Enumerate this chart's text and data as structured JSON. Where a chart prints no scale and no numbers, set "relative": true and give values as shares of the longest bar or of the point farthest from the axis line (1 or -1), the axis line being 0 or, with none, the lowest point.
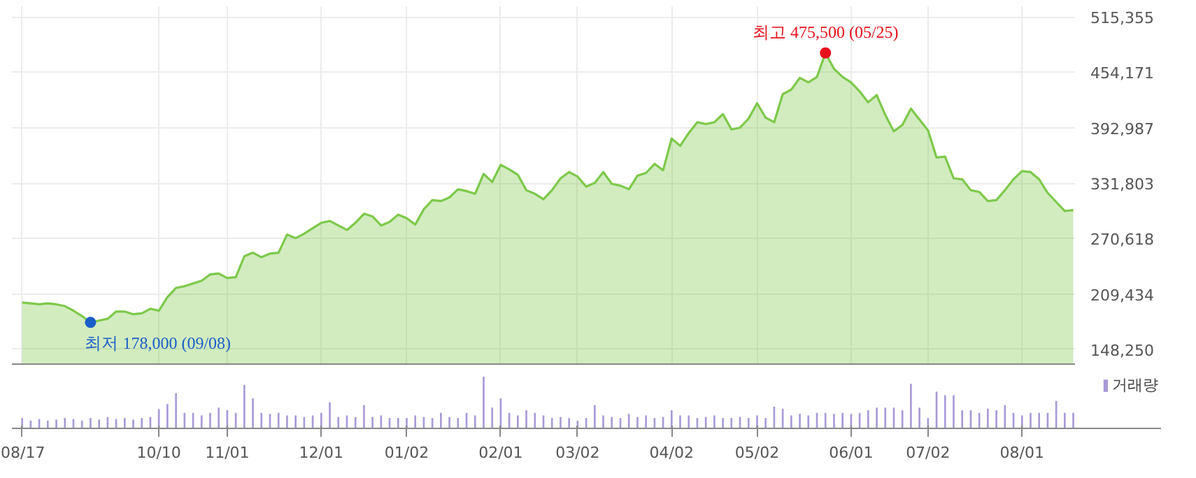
{
  "chart_data": [
    {
      "type": "area",
      "grid": true,
      "tick_labels": "y",
      "ylim": [
        132000,
        527000
      ],
      "yticks": [
        {
          "value": 148250,
          "label": "148,250"
        },
        {
          "value": 209434,
          "label": "209,434"
        },
        {
          "value": 270618,
          "label": "270,618"
        },
        {
          "value": 331803,
          "label": "331,803"
        },
        {
          "value": 392987,
          "label": "392,987"
        },
        {
          "value": 454171,
          "label": "454,171"
        },
        {
          "value": 515355,
          "label": "515,355"
        }
      ],
      "series": [
        {
          "type": "area",
          "color": "#7dc94a",
          "values": [
            200000,
            199000,
            198000,
            199000,
            198000,
            196000,
            191000,
            185000,
            178000,
            180000,
            182000,
            190000,
            190000,
            187000,
            188000,
            193000,
            191000,
            206000,
            216000,
            218000,
            221000,
            224000,
            231000,
            232000,
            227000,
            228000,
            251000,
            255000,
            250000,
            254000,
            255000,
            275000,
            271000,
            276000,
            282000,
            288000,
            290000,
            285000,
            280000,
            288000,
            298000,
            295000,
            285000,
            289000,
            297000,
            293000,
            286000,
            303000,
            313000,
            312000,
            316000,
            325000,
            323000,
            320000,
            342000,
            333000,
            352000,
            347000,
            341000,
            324000,
            320000,
            314000,
            324000,
            337000,
            344000,
            339000,
            328000,
            332000,
            344000,
            331000,
            329000,
            325000,
            340000,
            343000,
            353000,
            346000,
            381000,
            373000,
            387000,
            399000,
            397000,
            399000,
            408000,
            391000,
            393000,
            403000,
            420000,
            404000,
            399000,
            430000,
            435000,
            448000,
            443000,
            449000,
            475500,
            458000,
            449000,
            443000,
            433000,
            421000,
            429000,
            407000,
            389000,
            396000,
            414000,
            402000,
            390000,
            360000,
            361000,
            337000,
            336000,
            324000,
            322000,
            312000,
            313000,
            324000,
            336000,
            345000,
            344000,
            336000,
            321000,
            311000,
            301000,
            302000
          ]
        },
        {
          "type": "scatter",
          "values": [
            null,
            null,
            null,
            null,
            null,
            null,
            null,
            null,
            178000,
            null,
            null,
            null,
            null,
            null,
            null,
            null,
            null,
            null,
            null,
            null,
            null,
            null,
            null,
            null,
            null,
            null,
            null,
            null,
            null,
            null,
            null,
            null,
            null,
            null,
            null,
            null,
            null,
            null,
            null,
            null,
            null,
            null,
            null,
            null,
            null,
            null,
            null,
            null,
            null,
            null,
            null,
            null,
            null,
            null,
            null,
            null,
            null,
            null,
            null,
            null,
            null,
            null,
            null,
            null,
            null,
            null,
            null,
            null,
            null,
            null,
            null,
            null,
            null,
            null,
            null,
            null,
            null,
            null,
            null,
            null,
            null,
            null,
            null,
            null,
            null,
            null,
            null,
            null,
            null,
            null,
            null,
            null,
            null,
            null,
            475500,
            null,
            null,
            null,
            null,
            null,
            null,
            null,
            null,
            null,
            null,
            null,
            null,
            null,
            null,
            null,
            null,
            null,
            null,
            null,
            null,
            null,
            null,
            null,
            null,
            null,
            null,
            null,
            null,
            null
          ],
          "colors": [
            null,
            null,
            null,
            null,
            null,
            null,
            null,
            null,
            "#1a5fc8",
            null,
            null,
            null,
            null,
            null,
            null,
            null,
            null,
            null,
            null,
            null,
            null,
            null,
            null,
            null,
            null,
            null,
            null,
            null,
            null,
            null,
            null,
            null,
            null,
            null,
            null,
            null,
            null,
            null,
            null,
            null,
            null,
            null,
            null,
            null,
            null,
            null,
            null,
            null,
            null,
            null,
            null,
            null,
            null,
            null,
            null,
            null,
            null,
            null,
            null,
            null,
            null,
            null,
            null,
            null,
            null,
            null,
            null,
            null,
            null,
            null,
            null,
            null,
            null,
            null,
            null,
            null,
            null,
            null,
            null,
            null,
            null,
            null,
            null,
            null,
            null,
            null,
            null,
            null,
            null,
            null,
            null,
            null,
            null,
            null,
            "#e8101c",
            null,
            null,
            null,
            null,
            null,
            null,
            null,
            null,
            null,
            null,
            null,
            null,
            null,
            null,
            null,
            null,
            null,
            null,
            null,
            null,
            null,
            null,
            null,
            null,
            null,
            null,
            null,
            null,
            null
          ],
          "value_labels": [
            null,
            null,
            null,
            null,
            null,
            null,
            null,
            null,
            "최저 178,000 (09/08)",
            null,
            null,
            null,
            null,
            null,
            null,
            null,
            null,
            null,
            null,
            null,
            null,
            null,
            null,
            null,
            null,
            null,
            null,
            null,
            null,
            null,
            null,
            null,
            null,
            null,
            null,
            null,
            null,
            null,
            null,
            null,
            null,
            null,
            null,
            null,
            null,
            null,
            null,
            null,
            null,
            null,
            null,
            null,
            null,
            null,
            null,
            null,
            null,
            null,
            null,
            null,
            null,
            null,
            null,
            null,
            null,
            null,
            null,
            null,
            null,
            null,
            null,
            null,
            null,
            null,
            null,
            null,
            null,
            null,
            null,
            null,
            null,
            null,
            null,
            null,
            null,
            null,
            null,
            null,
            null,
            null,
            null,
            null,
            null,
            null,
            "최고 475,500 (05/25)",
            null,
            null,
            null,
            null,
            null,
            null,
            null,
            null,
            null,
            null,
            null,
            null,
            null,
            null,
            null,
            null,
            null,
            null,
            null,
            null,
            null,
            null,
            null,
            null,
            null,
            null,
            null,
            null,
            null
          ]
        }
      ]
    },
    {
      "type": "bar",
      "relative": true,
      "tick_labels": "x",
      "legend": "top right",
      "categories": [
        "08/17",
        null,
        null,
        null,
        null,
        null,
        null,
        null,
        null,
        null,
        null,
        null,
        null,
        null,
        null,
        null,
        "10/10",
        null,
        null,
        null,
        null,
        null,
        null,
        null,
        "11/01",
        null,
        null,
        null,
        null,
        null,
        null,
        null,
        null,
        null,
        null,
        "12/01",
        null,
        null,
        null,
        null,
        null,
        null,
        null,
        null,
        null,
        "01/02",
        null,
        null,
        null,
        null,
        null,
        null,
        null,
        null,
        null,
        null,
        "02/01",
        null,
        null,
        null,
        null,
        null,
        null,
        null,
        null,
        "03/02",
        null,
        null,
        null,
        null,
        null,
        null,
        null,
        null,
        null,
        null,
        "04/02",
        null,
        null,
        null,
        null,
        null,
        null,
        null,
        null,
        null,
        "05/02",
        null,
        null,
        null,
        null,
        null,
        null,
        null,
        null,
        null,
        null,
        "06/01",
        null,
        null,
        null,
        null,
        null,
        null,
        null,
        null,
        "07/02",
        null,
        null,
        null,
        null,
        null,
        null,
        null,
        null,
        null,
        null,
        "08/01",
        null,
        null,
        null,
        null,
        null,
        null
      ],
      "series": [
        {
          "name": "거래량",
          "color": "#a99ad8",
          "values": [
            0.2,
            0.15,
            0.18,
            0.15,
            0.17,
            0.2,
            0.18,
            0.15,
            0.2,
            0.17,
            0.22,
            0.18,
            0.2,
            0.17,
            0.2,
            0.22,
            0.37,
            0.47,
            0.68,
            0.3,
            0.3,
            0.25,
            0.3,
            0.4,
            0.35,
            0.3,
            0.84,
            0.58,
            0.3,
            0.28,
            0.3,
            0.25,
            0.25,
            0.22,
            0.25,
            0.3,
            0.5,
            0.22,
            0.25,
            0.22,
            0.45,
            0.22,
            0.25,
            0.2,
            0.2,
            0.2,
            0.25,
            0.22,
            0.2,
            0.3,
            0.22,
            0.2,
            0.3,
            0.25,
            1.0,
            0.4,
            0.58,
            0.3,
            0.25,
            0.35,
            0.3,
            0.25,
            0.2,
            0.22,
            0.2,
            0.15,
            0.2,
            0.45,
            0.25,
            0.22,
            0.2,
            0.28,
            0.22,
            0.25,
            0.2,
            0.22,
            0.35,
            0.25,
            0.25,
            0.2,
            0.22,
            0.25,
            0.2,
            0.2,
            0.22,
            0.2,
            0.25,
            0.2,
            0.42,
            0.38,
            0.25,
            0.28,
            0.25,
            0.3,
            0.3,
            0.28,
            0.3,
            0.28,
            0.3,
            0.35,
            0.4,
            0.4,
            0.4,
            0.35,
            0.86,
            0.4,
            0.2,
            0.71,
            0.64,
            0.64,
            0.35,
            0.35,
            0.3,
            0.38,
            0.35,
            0.45,
            0.3,
            0.25,
            0.3,
            0.3,
            0.3,
            0.53,
            0.3,
            0.3
          ]
        }
      ]
    }
  ]
}
